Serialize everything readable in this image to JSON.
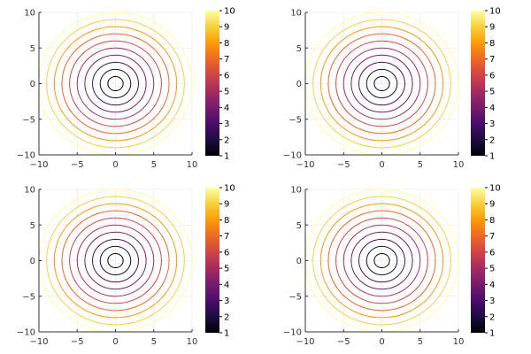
{
  "chart_data": [
    {
      "type": "contour",
      "title": "",
      "xlabel": "",
      "ylabel": "",
      "xlim": [
        -10,
        10
      ],
      "ylim": [
        -10,
        10
      ],
      "x_ticks": [
        "−10",
        "−5",
        "0",
        "5",
        "10"
      ],
      "y_ticks": [
        "10",
        "5",
        "0",
        "−5",
        "−10"
      ],
      "grid": true,
      "legend": "none",
      "contour_levels": [
        1,
        2,
        3,
        4,
        5,
        6,
        7,
        8,
        9,
        10
      ],
      "contour_radii": [
        1.0,
        2.0,
        3.0,
        4.0,
        5.0,
        6.0,
        7.0,
        8.0,
        9.0,
        10.0
      ],
      "colorbar": {
        "colormap": "inferno",
        "range": [
          1,
          10
        ],
        "ticks": [
          "10",
          "9",
          "8",
          "7",
          "6",
          "5",
          "4",
          "3",
          "2",
          "1"
        ]
      }
    },
    {
      "type": "contour",
      "title": "",
      "xlabel": "",
      "ylabel": "",
      "xlim": [
        -10,
        10
      ],
      "ylim": [
        -10,
        10
      ],
      "x_ticks": [
        "−10",
        "−5",
        "0",
        "5",
        "10"
      ],
      "y_ticks": [
        "10",
        "5",
        "0",
        "−5",
        "−10"
      ],
      "grid": true,
      "legend": "none",
      "contour_levels": [
        1,
        2,
        3,
        4,
        5,
        6,
        7,
        8,
        9,
        10
      ],
      "contour_radii": [
        1.0,
        2.0,
        3.0,
        4.0,
        5.0,
        6.0,
        7.0,
        8.0,
        9.0,
        10.0
      ],
      "colorbar": {
        "colormap": "inferno",
        "range": [
          1,
          10
        ],
        "ticks": [
          "10",
          "9",
          "8",
          "7",
          "6",
          "5",
          "4",
          "3",
          "2",
          "1"
        ]
      }
    },
    {
      "type": "contour",
      "title": "",
      "xlabel": "",
      "ylabel": "",
      "xlim": [
        -10,
        10
      ],
      "ylim": [
        -10,
        10
      ],
      "x_ticks": [
        "−10",
        "−5",
        "0",
        "5",
        "10"
      ],
      "y_ticks": [
        "10",
        "5",
        "0",
        "−5",
        "−10"
      ],
      "grid": true,
      "legend": "none",
      "contour_levels": [
        1,
        2,
        3,
        4,
        5,
        6,
        7,
        8,
        9,
        10
      ],
      "contour_radii": [
        1.0,
        2.0,
        3.0,
        4.0,
        5.0,
        6.0,
        7.0,
        8.0,
        9.0,
        10.0
      ],
      "colorbar": {
        "colormap": "inferno",
        "range": [
          1,
          10
        ],
        "ticks": [
          "10",
          "9",
          "8",
          "7",
          "6",
          "5",
          "4",
          "3",
          "2",
          "1"
        ]
      }
    },
    {
      "type": "contour",
      "title": "",
      "xlabel": "",
      "ylabel": "",
      "xlim": [
        -10,
        10
      ],
      "ylim": [
        -10,
        10
      ],
      "x_ticks": [
        "−10",
        "−5",
        "0",
        "5",
        "10"
      ],
      "y_ticks": [
        "10",
        "5",
        "0",
        "−5",
        "−10"
      ],
      "grid": true,
      "legend": "none",
      "contour_levels": [
        1,
        2,
        3,
        4,
        5,
        6,
        7,
        8,
        9,
        10
      ],
      "contour_radii": [
        1.0,
        2.0,
        3.0,
        4.0,
        5.0,
        6.0,
        7.0,
        8.0,
        9.0,
        10.0
      ],
      "colorbar": {
        "colormap": "inferno",
        "range": [
          1,
          10
        ],
        "ticks": [
          "10",
          "9",
          "8",
          "7",
          "6",
          "5",
          "4",
          "3",
          "2",
          "1"
        ]
      }
    }
  ],
  "colors": {
    "colormap_stops": [
      "#000004",
      "#1b0c41",
      "#4a0c6b",
      "#781c6d",
      "#a52c60",
      "#cf4446",
      "#ed6925",
      "#fb9b06",
      "#f7d13d",
      "#fcffa4"
    ],
    "grid": "#e6e6e6",
    "axis": "#333333"
  }
}
